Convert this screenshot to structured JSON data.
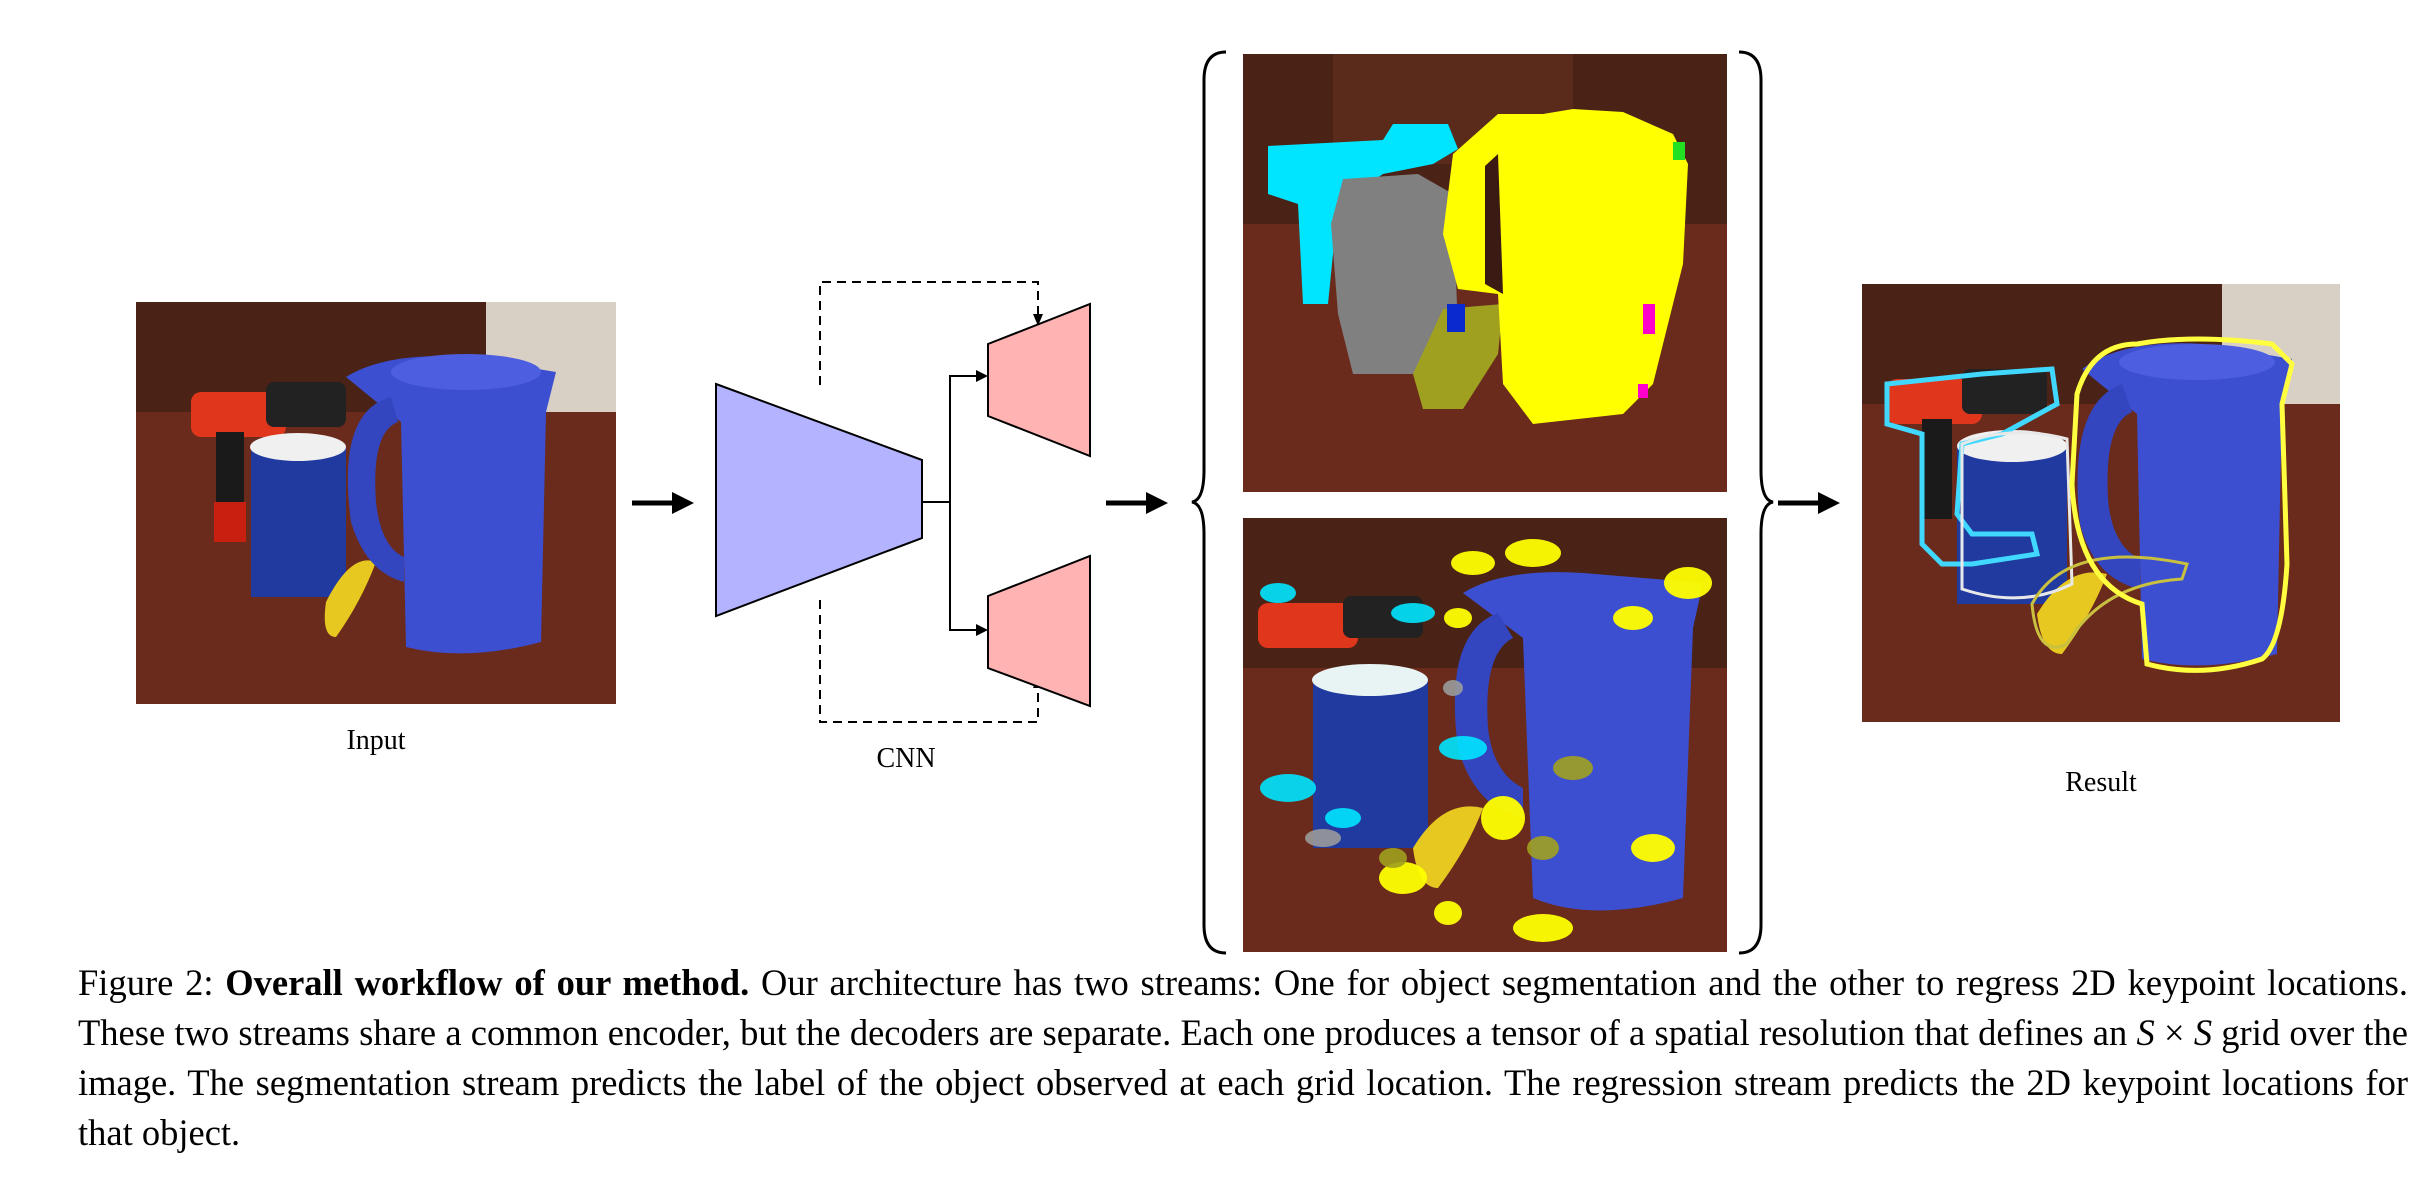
{
  "figure": {
    "input_label": "Input",
    "cnn_label": "CNN",
    "result_label": "Result"
  },
  "caption": {
    "prefix": "Figure 2: ",
    "title": "Overall workflow of our method.",
    "text_part1": " Our architecture has two streams: One for object segmentation and the other to regress 2D keypoint locations. These two streams share a common encoder, but the decoders are separate. Each one produces a tensor of a spatial resolution that defines an ",
    "math_s1": "S",
    "math_times": " × ",
    "math_s2": "S",
    "text_part2": " grid over the image. The segmentation stream predicts the label of the object observed at each grid location. The regression stream predicts the 2D keypoint locations for that object."
  },
  "colors": {
    "encoder": "#b3b3ff",
    "decoder": "#ffb3b3",
    "seg_cyan": "#00e5ff",
    "seg_yellow": "#ffff00",
    "seg_gray": "#808080",
    "seg_olive": "#a0a020",
    "pitcher_blue": "#3c4fd0",
    "table_brown": "#6a2a1c"
  }
}
